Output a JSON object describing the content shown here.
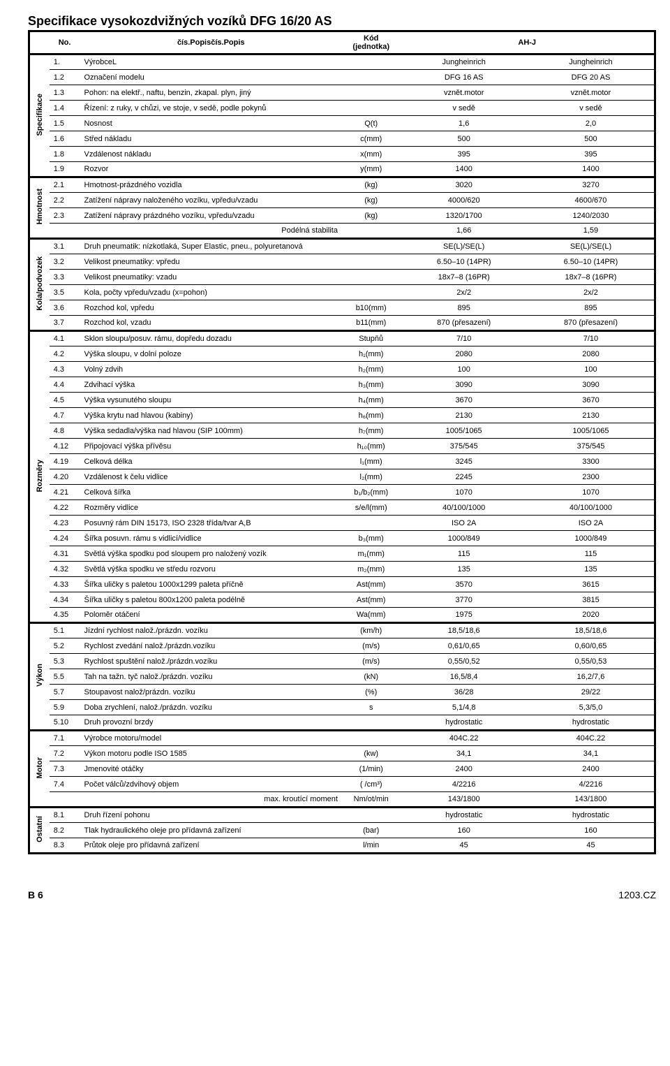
{
  "title": "Specifikace vysokozdvižných vozíků DFG 16/20 AS",
  "header": {
    "no": "No.",
    "desc": "čís.Popisčís.Popis",
    "unit": "Kód (jednotka)",
    "group": "AH-J"
  },
  "sections": [
    {
      "label": "Specifikace",
      "rows": [
        {
          "no": "1.",
          "desc": "VýrobceL",
          "unit": "",
          "v1": "Jungheinrich",
          "v2": "Jungheinrich"
        },
        {
          "no": "1.2",
          "desc": "Označení modelu",
          "unit": "",
          "v1": "DFG 16 AS",
          "v2": "DFG 20 AS"
        },
        {
          "no": "1.3",
          "desc": "Pohon: na elektř., naftu, benzin, zkapal. plyn, jiný",
          "unit": "",
          "v1": "vznět.motor",
          "v2": "vznět.motor"
        },
        {
          "no": "1.4",
          "desc": "Řízení: z ruky, v chůzi, ve stoje, v sedě, podle pokynů",
          "unit": "",
          "v1": "v sedě",
          "v2": "v sedě"
        },
        {
          "no": "1.5",
          "desc": "Nosnost",
          "unit": "Q(t)",
          "v1": "1,6",
          "v2": "2,0"
        },
        {
          "no": "1.6",
          "desc": "Střed nákladu",
          "unit": "c(mm)",
          "v1": "500",
          "v2": "500"
        },
        {
          "no": "1.8",
          "desc": "Vzdálenost nákladu",
          "unit": "x(mm)",
          "v1": "395",
          "v2": "395"
        },
        {
          "no": "1.9",
          "desc": "Rozvor",
          "unit": "y(mm)",
          "v1": "1400",
          "v2": "1400"
        }
      ]
    },
    {
      "label": "Hmotnost",
      "rows": [
        {
          "no": "2.1",
          "desc": "Hmotnost-prázdného vozidla",
          "unit": "(kg)",
          "v1": "3020",
          "v2": "3270"
        },
        {
          "no": "2.2",
          "desc": "Zatížení nápravy naloženého vozíku, vpředu/vzadu",
          "unit": "(kg)",
          "v1": "4000/620",
          "v2": "4600/670"
        },
        {
          "no": "2.3",
          "desc": "Zatížení nápravy prázdného vozíku, vpředu/vzadu",
          "unit": "(kg)",
          "v1": "1320/1700",
          "v2": "1240/2030"
        },
        {
          "no": "",
          "desc": "Podélná stabilita",
          "descAlign": "right",
          "unit": "",
          "v1": "1,66",
          "v2": "1,59"
        }
      ]
    },
    {
      "label": "Kola/podvozek",
      "rows": [
        {
          "no": "3.1",
          "desc": "Druh pneumatik: nízkotlaká, Super Elastic, pneu., polyuretanová",
          "unit": "",
          "v1": "SE(L)/SE(L)",
          "v2": "SE(L)/SE(L)"
        },
        {
          "no": "3.2",
          "desc": "Velikost pneumatiky: vpředu",
          "unit": "",
          "v1": "6.50–10 (14PR)",
          "v2": "6.50–10 (14PR)"
        },
        {
          "no": "3.3",
          "desc": "Velikost pneumatiky: vzadu",
          "unit": "",
          "v1": "18x7–8 (16PR)",
          "v2": "18x7–8 (16PR)"
        },
        {
          "no": "3.5",
          "desc": "Kola, počty vpředu/vzadu (x=pohon)",
          "unit": "",
          "v1": "2x/2",
          "v2": "2x/2"
        },
        {
          "no": "3.6",
          "desc": "Rozchod kol, vpředu",
          "unit": "b10(mm)",
          "v1": "895",
          "v2": "895"
        },
        {
          "no": "3.7",
          "desc": "Rozchod kol, vzadu",
          "unit": "b11(mm)",
          "v1": "870 (přesazení)",
          "v2": "870 (přesazení)"
        }
      ]
    },
    {
      "label": "Rozměry",
      "rows": [
        {
          "no": "4.1",
          "desc": "Sklon sloupu/posuv. rámu, dopředu dozadu",
          "unit": "Stupňů",
          "v1": "7/10",
          "v2": "7/10"
        },
        {
          "no": "4.2",
          "desc": "Výška sloupu, v dolní poloze",
          "unit": "h₁(mm)",
          "v1": "2080",
          "v2": "2080"
        },
        {
          "no": "4.3",
          "desc": "Volný zdvih",
          "unit": "h₂(mm)",
          "v1": "100",
          "v2": "100"
        },
        {
          "no": "4.4",
          "desc": "Zdvihací výška",
          "unit": "h₃(mm)",
          "v1": "3090",
          "v2": "3090"
        },
        {
          "no": "4.5",
          "desc": "Výška vysunutého sloupu",
          "unit": "h₄(mm)",
          "v1": "3670",
          "v2": "3670"
        },
        {
          "no": "4.7",
          "desc": "Výška krytu nad hlavou (kabiny)",
          "unit": "h₆(mm)",
          "v1": "2130",
          "v2": "2130"
        },
        {
          "no": "4.8",
          "desc": "Výška sedadla/výška nad hlavou (SIP 100mm)",
          "unit": "h₇(mm)",
          "v1": "1005/1065",
          "v2": "1005/1065"
        },
        {
          "no": "4.12",
          "desc": "Připojovací výška přívěsu",
          "unit": "h₁₀(mm)",
          "v1": "375/545",
          "v2": "375/545"
        },
        {
          "no": "4.19",
          "desc": "Celková délka",
          "unit": "l₁(mm)",
          "v1": "3245",
          "v2": "3300"
        },
        {
          "no": "4.20",
          "desc": "Vzdálenost k čelu vidlice",
          "unit": "l₂(mm)",
          "v1": "2245",
          "v2": "2300"
        },
        {
          "no": "4.21",
          "desc": "Celková šířka",
          "unit": "b₁/b₂(mm)",
          "v1": "1070",
          "v2": "1070"
        },
        {
          "no": "4.22",
          "desc": "Rozměry vidlice",
          "unit": "s/e/l(mm)",
          "v1": "40/100/1000",
          "v2": "40/100/1000"
        },
        {
          "no": "4.23",
          "desc": "Posuvný rám DIN 15173, ISO 2328 třída/tvar A,B",
          "unit": "",
          "v1": "ISO 2A",
          "v2": "ISO 2A"
        },
        {
          "no": "4.24",
          "desc": "Šířka posuvn. rámu s vidlicí/vidlice",
          "unit": "b₃(mm)",
          "v1": "1000/849",
          "v2": "1000/849"
        },
        {
          "no": "4.31",
          "desc": "Světlá výška spodku pod sloupem pro naložený vozík",
          "unit": "m₁(mm)",
          "v1": "115",
          "v2": "115"
        },
        {
          "no": "4.32",
          "desc": "Světlá výška spodku ve středu rozvoru",
          "unit": "m₂(mm)",
          "v1": "135",
          "v2": "135"
        },
        {
          "no": "4.33",
          "desc": "Šířka uličky s paletou 1000x1299 paleta příčně",
          "unit": "Ast(mm)",
          "v1": "3570",
          "v2": "3615"
        },
        {
          "no": "4.34",
          "desc": "Šířka uličky s paletou 800x1200 paleta podélně",
          "unit": "Ast(mm)",
          "v1": "3770",
          "v2": "3815"
        },
        {
          "no": "4.35",
          "desc": "Poloměr otáčení",
          "unit": "Wa(mm)",
          "v1": "1975",
          "v2": "2020"
        }
      ]
    },
    {
      "label": "Výkon",
      "rows": [
        {
          "no": "5.1",
          "desc": "Jízdní rychlost nalož./prázdn. vozíku",
          "unit": "(km/h)",
          "v1": "18,5/18,6",
          "v2": "18,5/18,6"
        },
        {
          "no": "5.2",
          "desc": "Rychlost zvedání nalož./prázdn.vozíku",
          "unit": "(m/s)",
          "v1": "0,61/0,65",
          "v2": "0,60/0,65"
        },
        {
          "no": "5.3",
          "desc": "Rychlost spuštění nalož./prázdn.vozíku",
          "unit": "(m/s)",
          "v1": "0,55/0,52",
          "v2": "0,55/0,53"
        },
        {
          "no": "5.5",
          "desc": "Tah na tažn. tyč nalož./prázdn. vozíku",
          "unit": "(kN)",
          "v1": "16,5/8,4",
          "v2": "16,2/7,6"
        },
        {
          "no": "5.7",
          "desc": "Stoupavost nalož/prázdn. vozíku",
          "unit": "(%)",
          "v1": "36/28",
          "v2": "29/22"
        },
        {
          "no": "5.9",
          "desc": "Doba zrychlení, nalož./prázdn. vozíku",
          "unit": "s",
          "v1": "5,1/4,8",
          "v2": "5,3/5,0"
        },
        {
          "no": "5.10",
          "desc": "Druh provozní brzdy",
          "unit": "",
          "v1": "hydrostatic",
          "v2": "hydrostatic"
        }
      ]
    },
    {
      "label": "Motor",
      "rows": [
        {
          "no": "7.1",
          "desc": "Výrobce motoru/model",
          "unit": "",
          "v1": "404C.22",
          "v2": "404C.22"
        },
        {
          "no": "7.2",
          "desc": "Výkon motoru podle ISO 1585",
          "unit": "(kw)",
          "v1": "34,1",
          "v2": "34,1"
        },
        {
          "no": "7.3",
          "desc": "Jmenovité otáčky",
          "unit": "(1/min)",
          "v1": "2400",
          "v2": "2400"
        },
        {
          "no": "7.4",
          "desc": "Počet válců/zdvihový objem",
          "unit": "( /cm³)",
          "v1": "4/2216",
          "v2": "4/2216"
        },
        {
          "no": "",
          "desc": "max. kroutící moment",
          "descAlign": "right",
          "unit": "Nm/ot/min",
          "v1": "143/1800",
          "v2": "143/1800"
        }
      ]
    },
    {
      "label": "Ostatní",
      "rows": [
        {
          "no": "8.1",
          "desc": "Druh řízení pohonu",
          "unit": "",
          "v1": "hydrostatic",
          "v2": "hydrostatic"
        },
        {
          "no": "8.2",
          "desc": "Tlak hydraulického oleje pro přídavná zařízení",
          "unit": "(bar)",
          "v1": "160",
          "v2": "160"
        },
        {
          "no": "8.3",
          "desc": "Průtok oleje pro přídavná zařízení",
          "unit": "l/min",
          "v1": "45",
          "v2": "45"
        }
      ]
    }
  ],
  "footer": {
    "left": "B 6",
    "right": "1203.CZ"
  }
}
